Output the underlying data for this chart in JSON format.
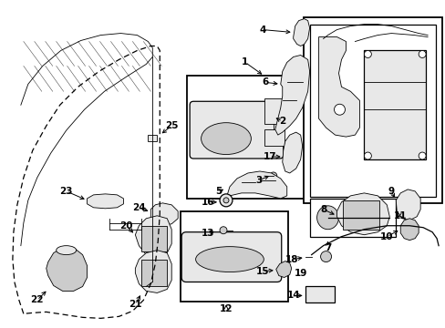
{
  "bg_color": "#ffffff",
  "fig_width": 4.89,
  "fig_height": 3.6,
  "dpi": 100
}
